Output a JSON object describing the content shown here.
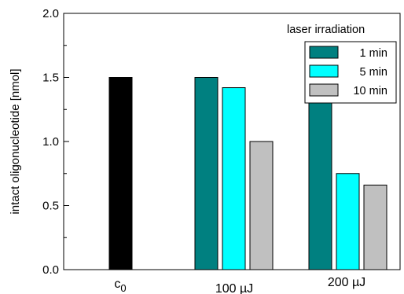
{
  "chart_data": {
    "type": "bar",
    "ylabel": "intact oligonucleotide [nmol]",
    "ylim": [
      0,
      2.0
    ],
    "yticks": [
      "0.0",
      "0.5",
      "1.0",
      "1.5",
      "2.0"
    ],
    "categories": [
      {
        "base": "c",
        "sub": "0"
      },
      {
        "base": "100 µJ",
        "sub": ""
      },
      {
        "base": "200 µJ",
        "sub": ""
      }
    ],
    "baseline": {
      "category_index": 0,
      "value": 1.5,
      "color": "#000000"
    },
    "legend": {
      "title": "laser irradiation",
      "placement": "top-right"
    },
    "series": [
      {
        "name": "1 min",
        "color": "#008080",
        "values": [
          null,
          1.5,
          1.32
        ]
      },
      {
        "name": "5 min",
        "color": "#00FFFF",
        "values": [
          null,
          1.42,
          0.75
        ]
      },
      {
        "name": "10 min",
        "color": "#C0C0C0",
        "values": [
          null,
          1.0,
          0.66
        ]
      }
    ],
    "grid": false
  }
}
